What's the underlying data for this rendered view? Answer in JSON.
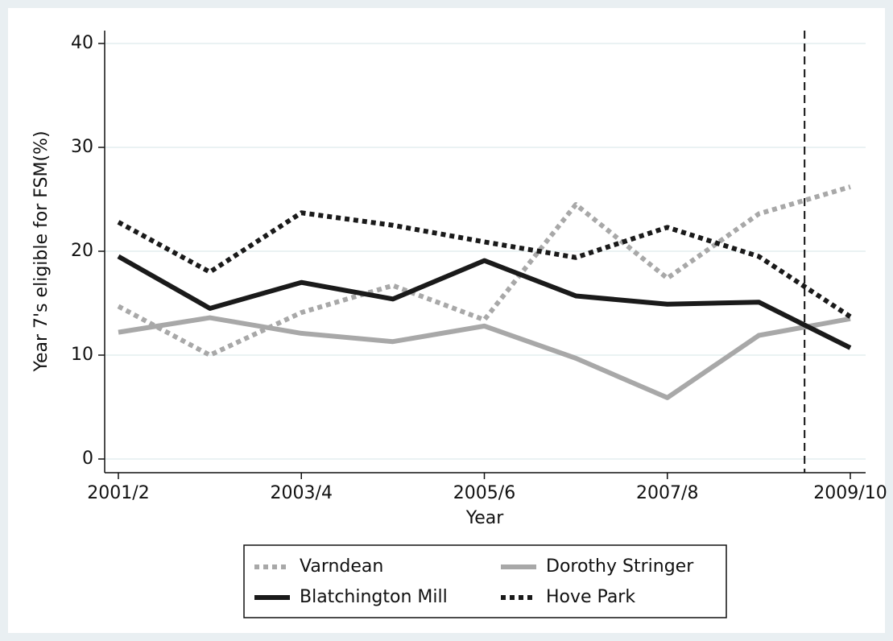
{
  "chart_data": {
    "type": "line",
    "x_label": "Year",
    "y_label": "Year 7's eligible for FSM(%)",
    "categories": [
      "2001/2",
      null,
      "2003/4",
      null,
      "2005/6",
      null,
      "2007/8",
      null,
      "2009/10"
    ],
    "series": [
      {
        "name": "Varndean",
        "color": "#a8a8a8",
        "dash": "dotted",
        "values": [
          14.7,
          10.0,
          14.1,
          16.7,
          13.4,
          24.5,
          17.4,
          23.6,
          26.2
        ]
      },
      {
        "name": "Dorothy Stringer",
        "color": "#a8a8a8",
        "dash": "solid",
        "values": [
          12.2,
          13.6,
          12.1,
          11.3,
          12.8,
          9.7,
          5.9,
          11.9,
          13.5
        ]
      },
      {
        "name": "Blatchington Mill",
        "color": "#1a1a1a",
        "dash": "solid",
        "values": [
          19.5,
          14.5,
          17.0,
          15.4,
          19.1,
          15.7,
          14.9,
          15.1,
          10.7
        ]
      },
      {
        "name": "Hove Park",
        "color": "#1a1a1a",
        "dash": "dotted",
        "values": [
          22.8,
          18.0,
          23.7,
          22.5,
          20.9,
          19.4,
          22.3,
          19.5,
          13.7
        ]
      }
    ],
    "ylim": [
      0,
      40
    ],
    "yticks": [
      0,
      10,
      20,
      30,
      40
    ],
    "grid": true,
    "vline": {
      "x": 7.5,
      "color": "#111111"
    },
    "legend": "bottom"
  }
}
